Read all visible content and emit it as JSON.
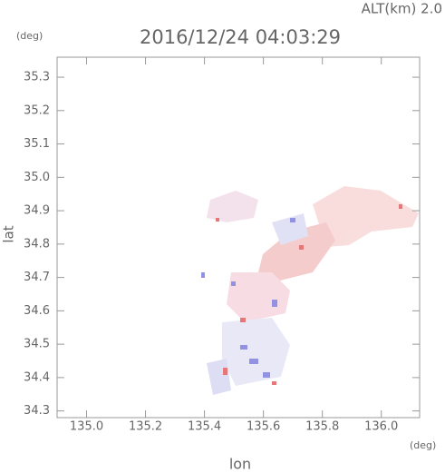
{
  "chart_data": {
    "type": "map",
    "altitude_label": "ALT(km)  2.0",
    "title": "2016/12/24 04:03:29",
    "y_unit": "(deg)",
    "x_unit": "(deg)",
    "ylabel": "lat",
    "xlabel": "lon",
    "xlim": [
      134.9,
      136.13
    ],
    "ylim": [
      34.28,
      35.36
    ],
    "xticks": [
      {
        "value": 135.0,
        "label": "135.0"
      },
      135.2,
      135.4,
      135.6,
      135.8,
      {
        "value": 136.0,
        "label": "136.0"
      }
    ],
    "yticks": [
      34.3,
      34.4,
      34.5,
      34.6,
      34.7,
      34.8,
      34.9,
      {
        "value": 35.0,
        "label": "35.0"
      },
      35.1,
      35.2,
      35.3
    ]
  }
}
